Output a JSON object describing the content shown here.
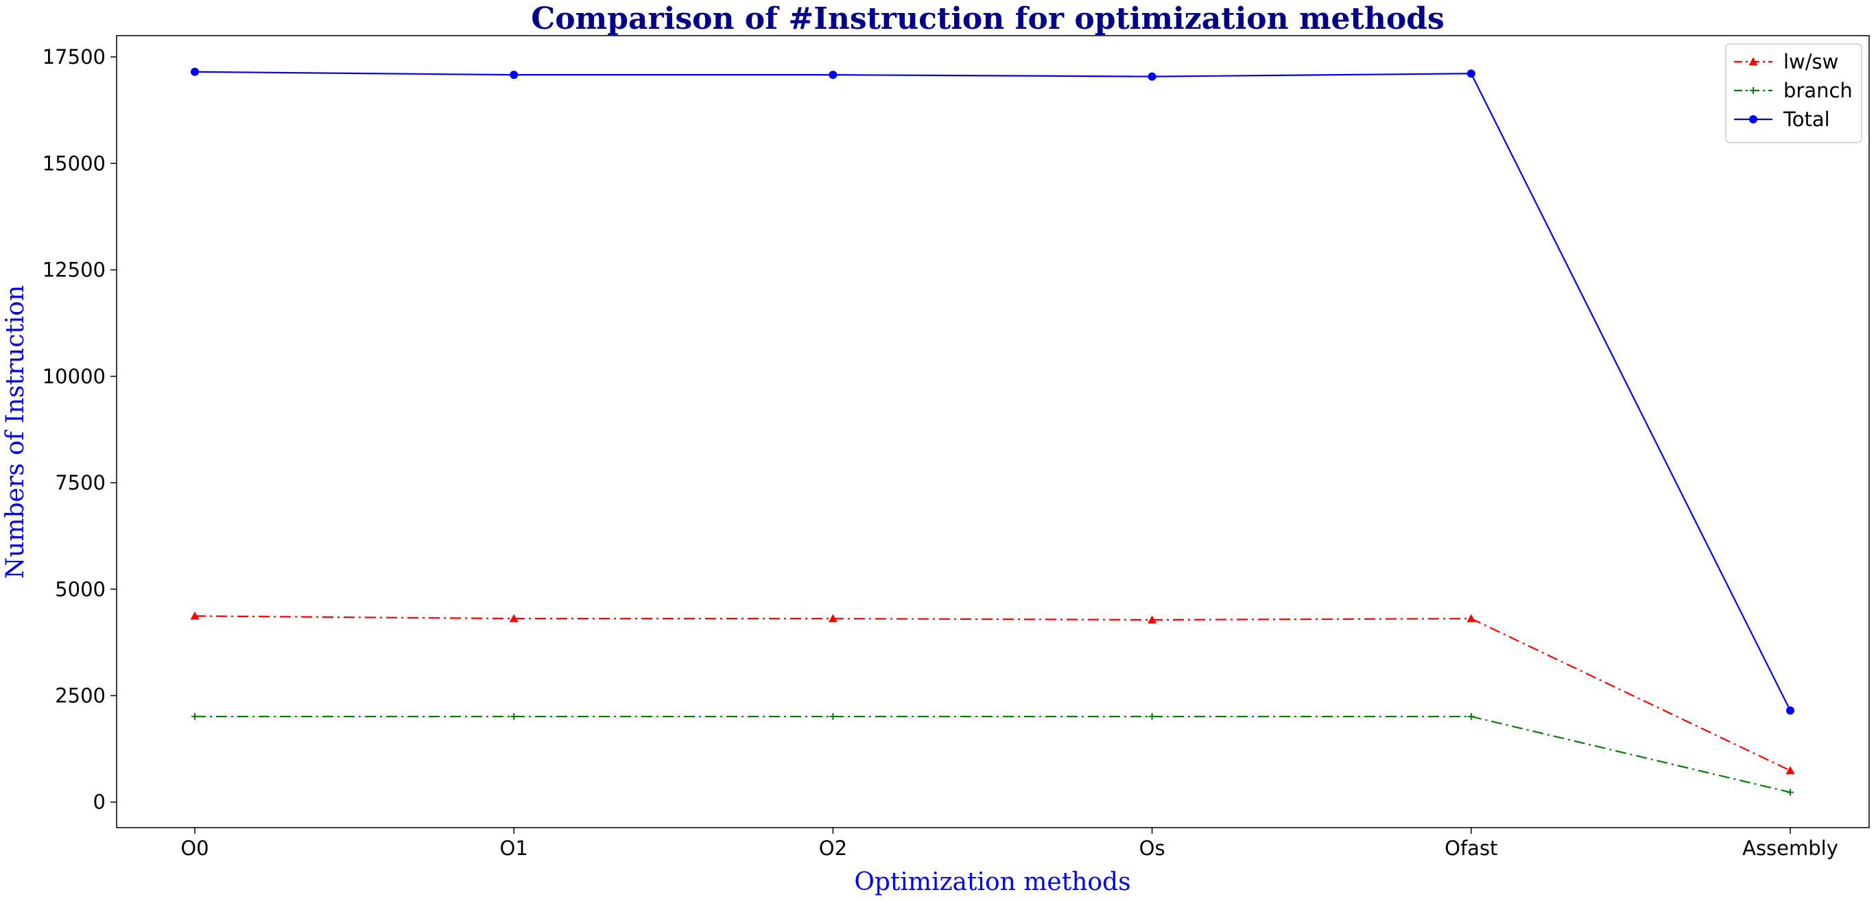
{
  "chart_data": {
    "type": "line",
    "title": "Comparison of #Instruction for optimization methods",
    "xlabel": "Optimization methods",
    "ylabel": "Numbers of Instruction",
    "categories": [
      "O0",
      "O1",
      "O2",
      "Os",
      "Ofast",
      "Assembly"
    ],
    "ylim": [
      -600,
      18000
    ],
    "yticks": [
      0,
      2500,
      5000,
      7500,
      10000,
      12500,
      15000,
      17500
    ],
    "grid": false,
    "legend_position": "top-right",
    "series": [
      {
        "name": "lw/sw",
        "values": [
          4370,
          4310,
          4310,
          4280,
          4310,
          740
        ],
        "color": "#ff0000",
        "line_style": "dash-dot",
        "marker": "triangle"
      },
      {
        "name": "branch",
        "values": [
          2010,
          2010,
          2010,
          2010,
          2010,
          230
        ],
        "color": "#008000",
        "line_style": "dash-dot",
        "marker": "plus"
      },
      {
        "name": "Total",
        "values": [
          17150,
          17080,
          17080,
          17040,
          17110,
          2150
        ],
        "color": "#0000ff",
        "line_style": "solid",
        "marker": "circle"
      }
    ]
  }
}
